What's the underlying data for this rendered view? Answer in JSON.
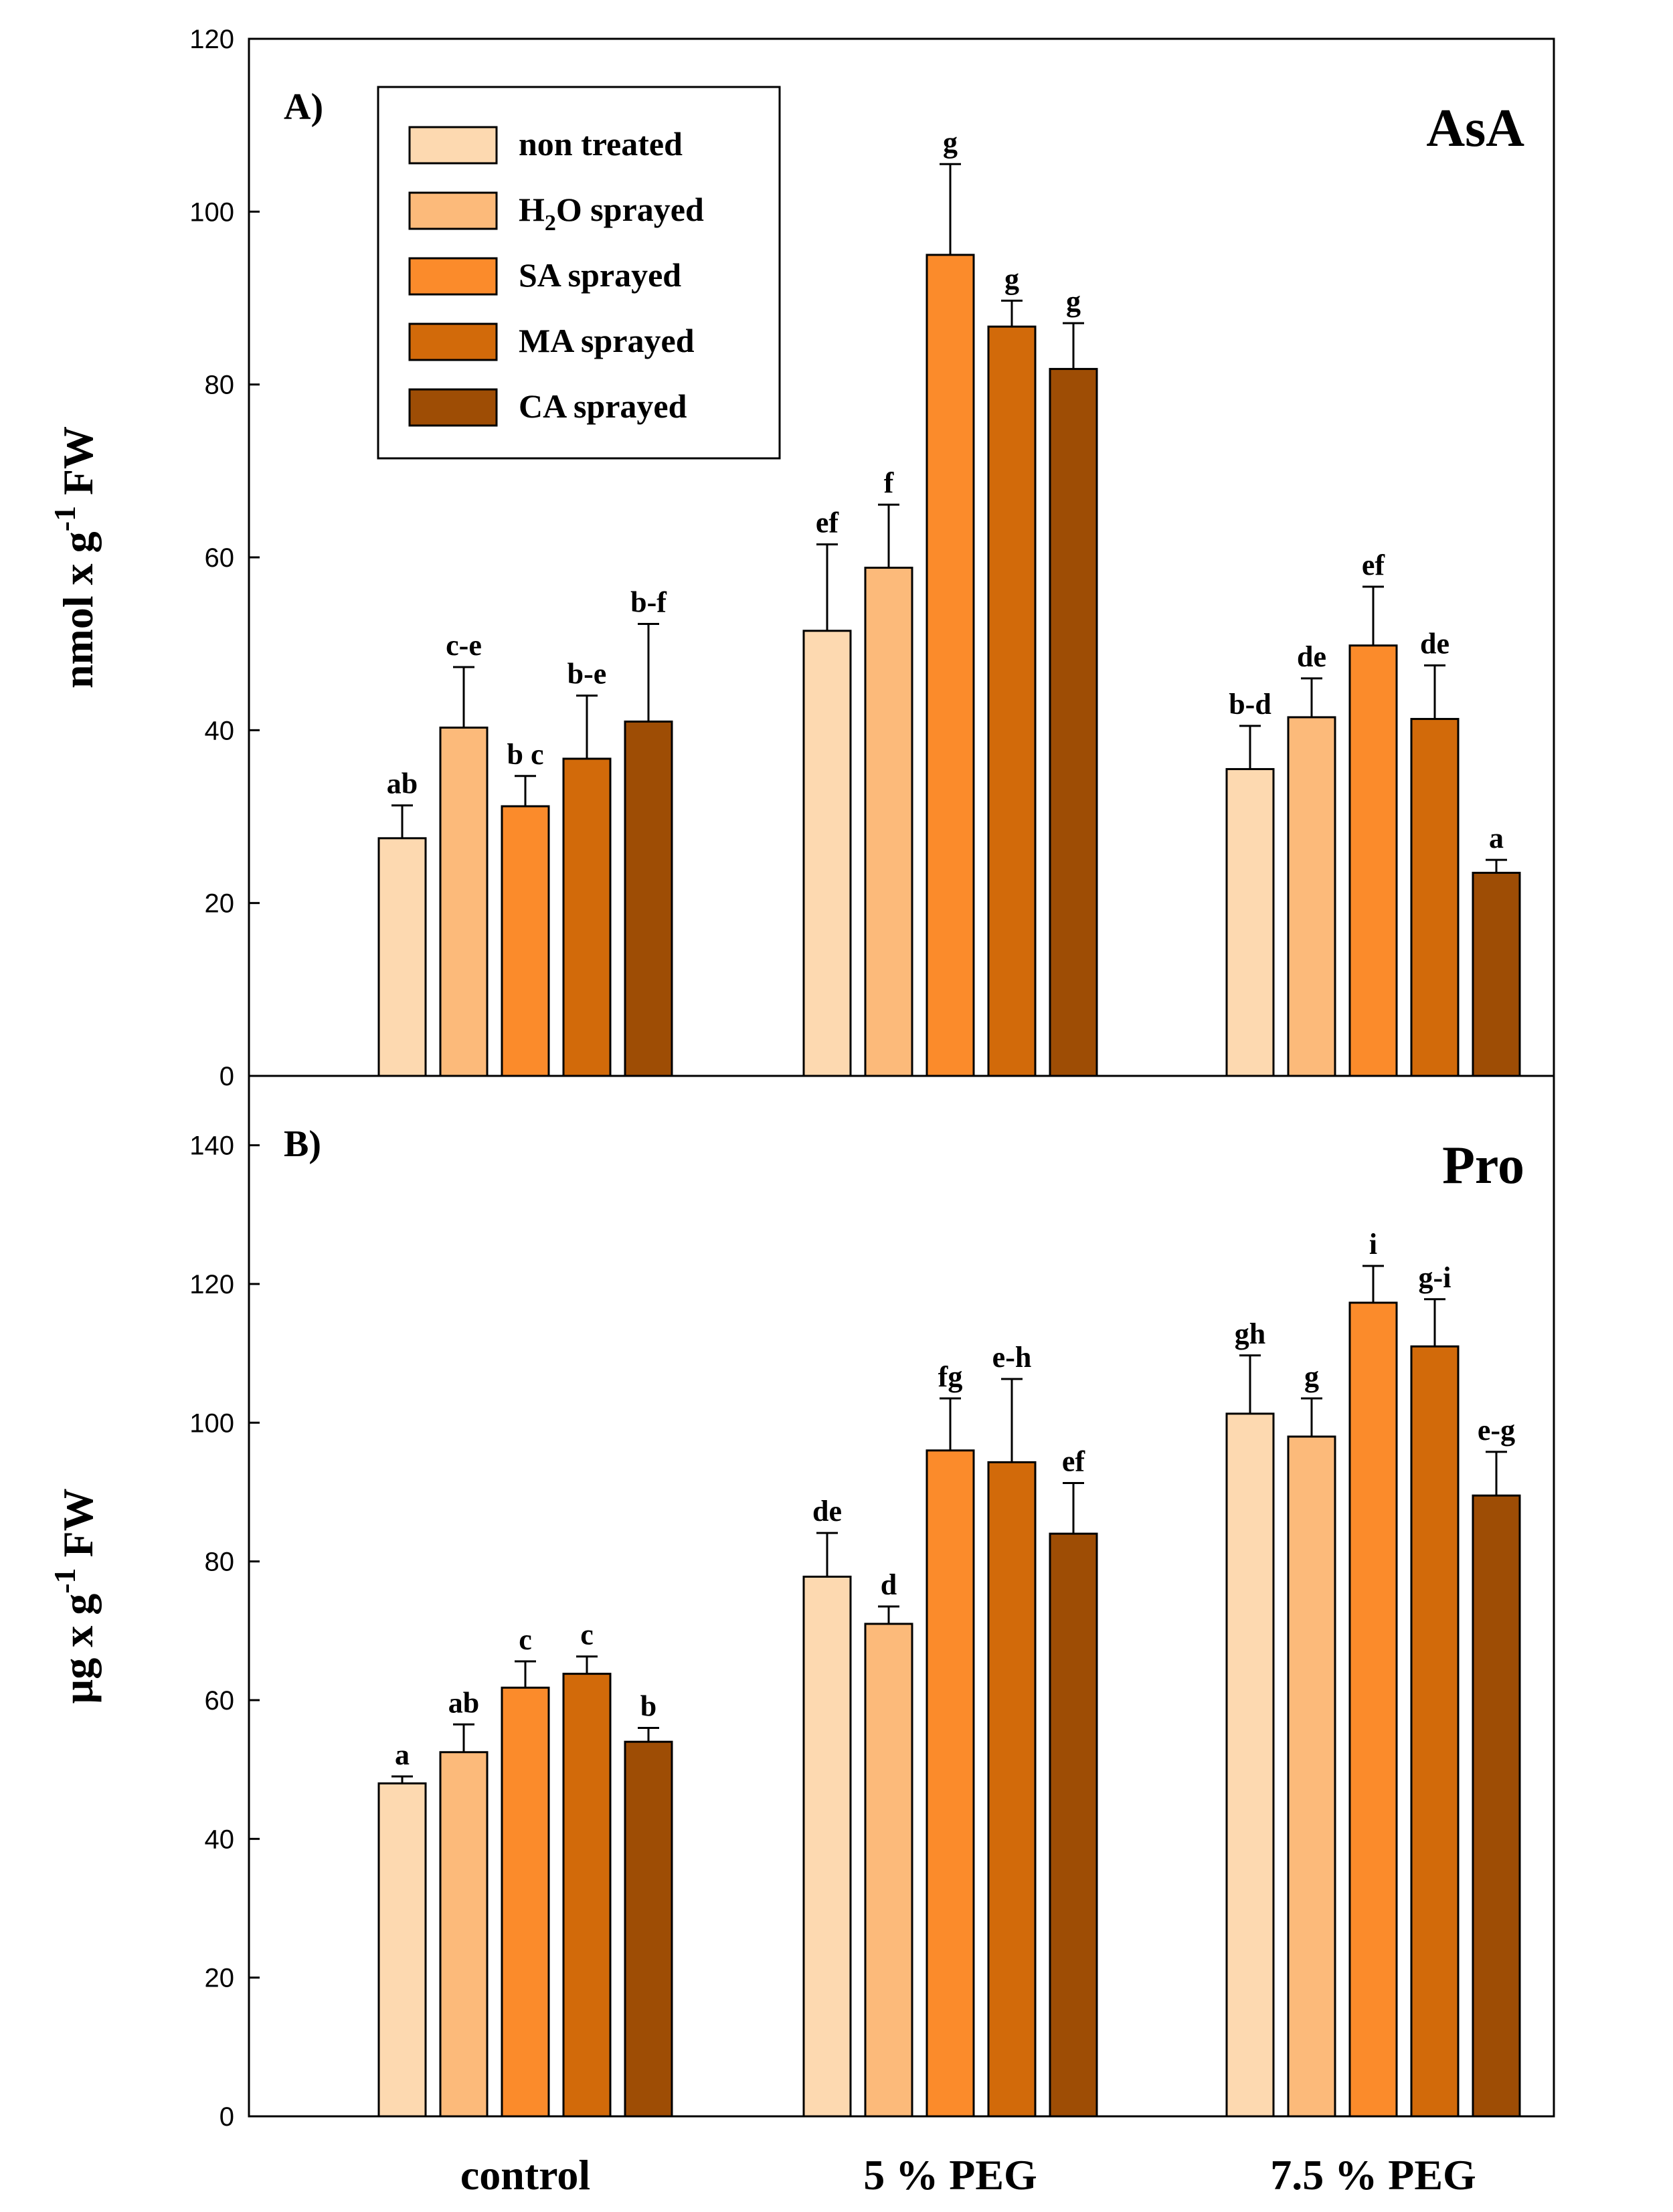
{
  "chart_data": [
    {
      "panel": "A",
      "type": "bar",
      "panel_label": "A)",
      "title": "AsA",
      "ylabel": "nmol x g-1 FW",
      "ylabel_parts": {
        "main": "nmol x g",
        "sup": "-1",
        "unit": " FW"
      },
      "ylim": [
        0,
        120
      ],
      "yticks": [
        "0",
        "20",
        "40",
        "60",
        "80",
        "100",
        "120"
      ],
      "categories": [
        "control",
        "5 % PEG",
        "7.5 % PEG"
      ],
      "series": [
        {
          "name": "non treated",
          "color": "#fdd9b0",
          "values": [
            27.5,
            51.5,
            35.5
          ],
          "errors": [
            3.8,
            10,
            5
          ],
          "letters": [
            "ab",
            "ef",
            "b-d"
          ]
        },
        {
          "name": "H2O sprayed",
          "color": "#fcba7a",
          "values": [
            40.3,
            58.8,
            41.5
          ],
          "errors": [
            7,
            7.3,
            4.5
          ],
          "letters": [
            "c-e",
            "f",
            "de"
          ]
        },
        {
          "name": "SA sprayed",
          "color": "#fb8b2b",
          "values": [
            31.2,
            95,
            49.8
          ],
          "errors": [
            3.5,
            10.5,
            6.8
          ],
          "letters": [
            "b c",
            "g",
            "ef"
          ]
        },
        {
          "name": "MA sprayed",
          "color": "#d26a0a",
          "values": [
            36.7,
            86.7,
            41.3
          ],
          "errors": [
            7.3,
            3,
            6.2
          ],
          "letters": [
            "b-e",
            "g",
            "de"
          ]
        },
        {
          "name": "CA sprayed",
          "color": "#9e4d05",
          "values": [
            41,
            81.8,
            23.5
          ],
          "errors": [
            11.3,
            5.3,
            1.5
          ],
          "letters": [
            "b-f",
            "g",
            "a"
          ]
        }
      ]
    },
    {
      "panel": "B",
      "type": "bar",
      "panel_label": "B)",
      "title": "Pro",
      "ylabel": "µg x g-1 FW",
      "ylabel_parts": {
        "main": "µg x g",
        "sup": "-1",
        "unit": " FW"
      },
      "ylim": [
        0,
        150
      ],
      "yticks": [
        "0",
        "20",
        "40",
        "60",
        "80",
        "100",
        "120",
        "140"
      ],
      "categories": [
        "control",
        "5 % PEG",
        "7.5 % PEG"
      ],
      "series": [
        {
          "name": "non treated",
          "color": "#fdd9b0",
          "values": [
            48,
            77.8,
            101.3
          ],
          "errors": [
            1,
            6.3,
            8.4
          ],
          "letters": [
            "a",
            "de",
            "gh"
          ]
        },
        {
          "name": "H2O sprayed",
          "color": "#fcba7a",
          "values": [
            52.5,
            71,
            98
          ],
          "errors": [
            4,
            2.5,
            5.5
          ],
          "letters": [
            "ab",
            "d",
            "g"
          ]
        },
        {
          "name": "SA sprayed",
          "color": "#fb8b2b",
          "values": [
            61.8,
            96,
            117.3
          ],
          "errors": [
            3.8,
            7.5,
            5.3
          ],
          "letters": [
            "c",
            "fg",
            "i"
          ]
        },
        {
          "name": "MA sprayed",
          "color": "#d26a0a",
          "values": [
            63.8,
            94.3,
            111
          ],
          "errors": [
            2.5,
            12,
            6.8
          ],
          "letters": [
            "c",
            "e-h",
            "g-i"
          ]
        },
        {
          "name": "CA sprayed",
          "color": "#9e4d05",
          "values": [
            54,
            84,
            89.5
          ],
          "errors": [
            2,
            7.3,
            6.3
          ],
          "letters": [
            "b",
            "ef",
            "e-g"
          ]
        }
      ]
    }
  ],
  "legend": {
    "items": [
      {
        "label": "non treated",
        "color": "#fdd9b0"
      },
      {
        "label": "H2O sprayed",
        "label_parts": {
          "pre": "H",
          "sub": "2",
          "post": "O sprayed"
        },
        "color": "#fcba7a"
      },
      {
        "label": "SA sprayed",
        "color": "#fb8b2b"
      },
      {
        "label": "MA sprayed",
        "color": "#d26a0a"
      },
      {
        "label": "CA sprayed",
        "color": "#9e4d05"
      }
    ]
  }
}
